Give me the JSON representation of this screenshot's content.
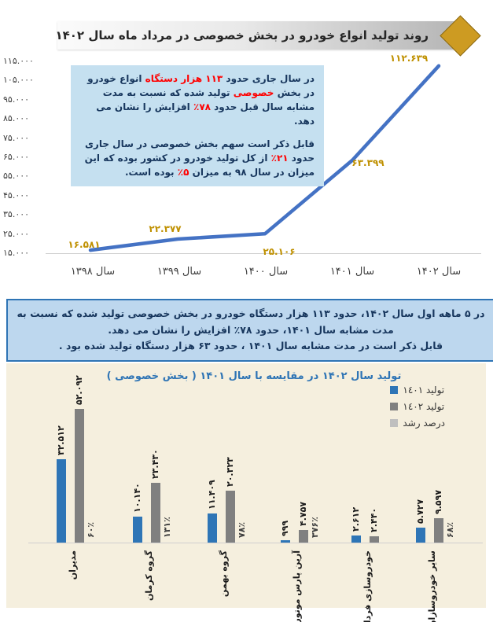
{
  "header": {
    "title": "روند تولید انواع خودرو در بخش خصوصی در مرداد ماه سال ۱۴۰۲"
  },
  "colors": {
    "line": "#4472C4",
    "line_point_labels": "#BF9000",
    "note_bg": "#C5E0F0",
    "note_text": "#17365D",
    "note_highlight": "#FF0000",
    "banner_bg": "#BDD7EE",
    "banner_border": "#2E74B5",
    "banner_text": "#17365D",
    "bar_section_bg": "#F5EFDE",
    "bar_title": "#2E74B5",
    "bar_1401": "#2E75B6",
    "bar_1402": "#808080",
    "growth_swatch": "#BFBFBF",
    "diamond": "#CD9B22"
  },
  "annotation_box": {
    "paragraphs": [
      [
        {
          "t": "در سال جاری حدود "
        },
        {
          "t": "۱۱۳ هزار دستگاه",
          "red": true
        },
        {
          "t": " انواع خودرو در بخش "
        },
        {
          "t": "خصوصی",
          "red": true
        },
        {
          "t": " تولید شده که نسبت به مدت مشابه سال قبل حدود "
        },
        {
          "t": "۷۸٪",
          "red": true
        },
        {
          "t": " افزایش را نشان می دهد."
        }
      ],
      [
        {
          "t": "قابل ذکر است سهم بخش خصوصی در سال جاری حدود "
        },
        {
          "t": "۲۱٪",
          "red": true
        },
        {
          "t": " از کل تولید خودرو در کشور بوده که این میزان در سال ۹۸ به میزان "
        },
        {
          "t": "۵٪",
          "red": true
        },
        {
          "t": " بوده است."
        }
      ]
    ]
  },
  "banner": {
    "line1": "در ۵ ماهه اول سال ۱۴۰۲، حدود ۱۱۳ هزار دستگاه خودرو در بخش خصوصی تولید شده که نسبت به مدت مشابه سال ۱۴۰۱، حدود ۷۸٪ افزایش را نشان می دهد.",
    "line2": "قابل ذکر است در مدت مشابه سال ۱۴۰۱ ، حدود ۶۳ هزار دستگاه تولید شده بود ."
  },
  "chart_data": [
    {
      "type": "line",
      "title": "",
      "x_labels": [
        "سال ۱۳۹۸",
        "سال ۱۳۹۹",
        "سال ۱۴۰۰",
        "سال ۱۴۰۱",
        "سال ۱۴۰۲"
      ],
      "values": [
        16581,
        22377,
        25106,
        63399,
        112639
      ],
      "point_labels": [
        "۱۶.۵۸۱",
        "۲۲.۳۷۷",
        "۲۵.۱۰۶",
        "۶۳.۳۹۹",
        "۱۱۲.۶۳۹"
      ],
      "ylim": [
        15000,
        115000
      ],
      "grid": false,
      "legend": "none",
      "y_ticks": [
        {
          "label": "۱۱۵.۰۰۰",
          "value": 115000
        },
        {
          "label": "۱۰۵.۰۰۰",
          "value": 105000
        },
        {
          "label": "۹۵.۰۰۰",
          "value": 95000
        },
        {
          "label": "۸۵.۰۰۰",
          "value": 85000
        },
        {
          "label": "۷۵.۰۰۰",
          "value": 75000
        },
        {
          "label": "۶۵.۰۰۰",
          "value": 65000
        },
        {
          "label": "۵۵.۰۰۰",
          "value": 55000
        },
        {
          "label": "۴۵.۰۰۰",
          "value": 45000
        },
        {
          "label": "۳۵.۰۰۰",
          "value": 35000
        },
        {
          "label": "۲۵.۰۰۰",
          "value": 25000
        },
        {
          "label": "۱۵.۰۰۰",
          "value": 15000
        }
      ]
    },
    {
      "type": "bar",
      "title": "تولید سال ۱۴۰۲ در مقایسه با سال ۱۴۰۱ ( بخش خصوصی )",
      "categories": [
        "مدیران",
        "گروه کرمان",
        "گروه بهمن",
        "آرین پارس موتور",
        "خودروسازی فردا",
        "سایر خودروسازان"
      ],
      "series": [
        {
          "name": "تولید ١٤٠١",
          "color": "#2E75B6",
          "values": [
            32512,
            10140,
            11409,
            999,
            2612,
            5727
          ],
          "labels": [
            "۳۲.۵۱۲",
            "۱۰.۱۴۰",
            "۱۱.۴۰۹",
            "۹۹۹",
            "۲.۶۱۲",
            "۵.۷۲۷"
          ]
        },
        {
          "name": "تولید ١٤٠٢",
          "color": "#808080",
          "values": [
            52092,
            23430,
            20323,
            4757,
            2440,
            9597
          ],
          "labels": [
            "۵۲.۰۹۲",
            "۲۳.۴۳۰",
            "۲۰.۳۲۳",
            "۴.۷۵۷",
            "۲.۴۴۰",
            "۹.۵۹۷"
          ]
        }
      ],
      "growth_series": {
        "name": "درصد رشد",
        "color": "#BFBFBF",
        "labels": [
          "۶۰٪",
          "۱۳۱٪",
          "۷۸٪",
          "۳۷۶٪",
          "",
          "۶۸٪"
        ]
      },
      "legend_position": "right"
    }
  ]
}
